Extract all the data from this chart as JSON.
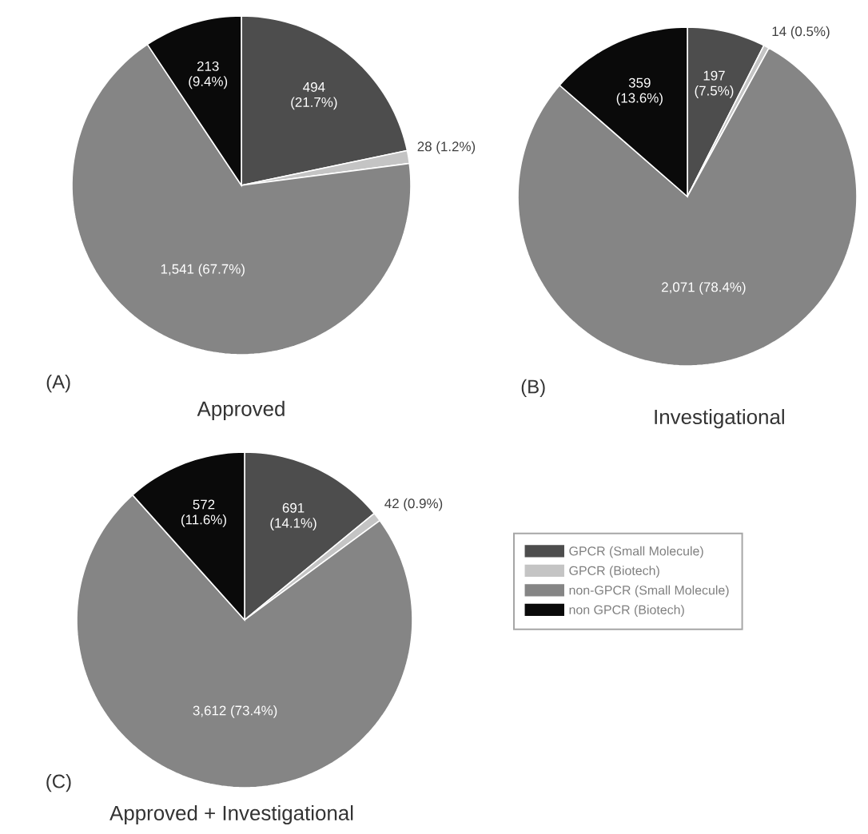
{
  "chart_data": [
    {
      "type": "pie",
      "title": "Approved",
      "annotations": [
        "(A)"
      ],
      "values": [
        494,
        28,
        1541,
        213
      ],
      "colors": [
        "#4d4d4d",
        "#c4c4c4",
        "#858585",
        "#0a0a0a"
      ],
      "value_labels": [
        "494 (21.7%)",
        "28 (1.2%)",
        "1,541 (67.7%)",
        "213 (9.4%)"
      ]
    },
    {
      "type": "pie",
      "title": "Investigational",
      "annotations": [
        "(B)"
      ],
      "values": [
        197,
        14,
        2071,
        359
      ],
      "colors": [
        "#4d4d4d",
        "#c4c4c4",
        "#858585",
        "#0a0a0a"
      ],
      "value_labels": [
        "197 (7.5%)",
        "14 (0.5%)",
        "2,071 (78.4%)",
        "359 (13.6%)"
      ]
    },
    {
      "type": "pie",
      "title": "Approved + Investigational",
      "annotations": [
        "(C)"
      ],
      "categories": [
        "GPCR (Small Molecule)",
        "GPCR (Biotech)",
        "non-GPCR (Small Molecule)",
        "non GPCR (Biotech)"
      ],
      "values": [
        691,
        42,
        3612,
        572
      ],
      "colors": [
        "#4d4d4d",
        "#c4c4c4",
        "#858585",
        "#0a0a0a"
      ],
      "value_labels": [
        "691 (14.1%)",
        "42 (0.9%)",
        "3,612 (73.4%)",
        "572 (11.6%)"
      ],
      "legend": "right"
    }
  ]
}
